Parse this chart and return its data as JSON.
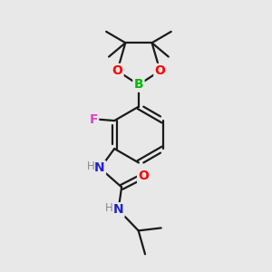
{
  "background_color": "#e8e8e8",
  "bond_color": "#1a1a1a",
  "atom_colors": {
    "O": "#ff0000",
    "B": "#00bb00",
    "F": "#dd44cc",
    "N": "#2222cc",
    "H_label": "#888888"
  },
  "figsize": [
    3.0,
    3.0
  ],
  "dpi": 100
}
